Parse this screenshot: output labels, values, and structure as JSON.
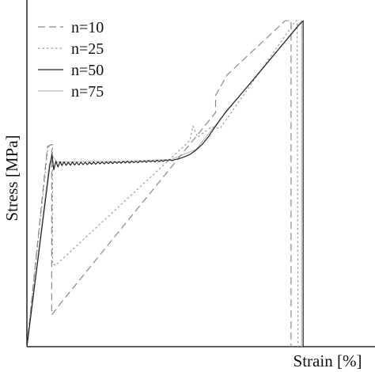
{
  "chart_data": {
    "type": "line",
    "title": "",
    "xlabel": "Strain [%]",
    "ylabel": "Stress [MPa]",
    "xlim": [
      0,
      100
    ],
    "ylim": [
      0,
      100
    ],
    "ticks_shown": false,
    "grid": false,
    "legend": {
      "placement": "top-left"
    },
    "series": [
      {
        "name": "n=10",
        "color": "#8a8a8a",
        "style": "dashed",
        "points": [
          [
            0,
            0
          ],
          [
            6.8,
            60.8
          ],
          [
            8.2,
            61.4
          ],
          [
            8.2,
            9.6
          ],
          [
            11.2,
            13.2
          ],
          [
            62.5,
            71.1
          ],
          [
            62.5,
            76.3
          ],
          [
            66.3,
            82.5
          ],
          [
            85.5,
            99.0
          ],
          [
            87.5,
            99.0
          ],
          [
            87.5,
            0
          ]
        ]
      },
      {
        "name": "n=25",
        "color": "#9a9a9a",
        "style": "dotted",
        "points": [
          [
            0,
            0
          ],
          [
            7.0,
            60.6
          ],
          [
            8.5,
            61.4
          ],
          [
            8.5,
            25.1
          ],
          [
            9.5,
            24.7
          ],
          [
            54.0,
            62.6
          ],
          [
            55.0,
            67.0
          ],
          [
            56.5,
            63.6
          ],
          [
            61.2,
            66.8
          ],
          [
            64.0,
            66.3
          ],
          [
            89.0,
            99.0
          ],
          [
            89.5,
            99.0
          ],
          [
            89.8,
            0
          ]
        ]
      },
      {
        "name": "n=50",
        "color": "#222222",
        "style": "solid",
        "points": [
          [
            0,
            0
          ],
          [
            7.6,
            55.1
          ],
          [
            8.3,
            58.4
          ],
          [
            8.9,
            53.7
          ],
          [
            9.6,
            56.3
          ],
          [
            10.3,
            54.6
          ],
          [
            11.0,
            56.2
          ],
          [
            11.6,
            55.0
          ],
          [
            12.3,
            56.1
          ],
          [
            13.0,
            55.1
          ],
          [
            13.7,
            56.0
          ],
          [
            14.4,
            55.1
          ],
          [
            15.1,
            56.1
          ],
          [
            15.8,
            55.2
          ],
          [
            16.5,
            56.0
          ],
          [
            17.2,
            55.2
          ],
          [
            17.9,
            56.0
          ],
          [
            18.6,
            55.3
          ],
          [
            19.3,
            56.0
          ],
          [
            20.0,
            55.3
          ],
          [
            20.7,
            56.0
          ],
          [
            21.4,
            55.4
          ],
          [
            22.1,
            56.1
          ],
          [
            22.8,
            55.4
          ],
          [
            23.5,
            56.1
          ],
          [
            24.2,
            55.5
          ],
          [
            24.9,
            56.1
          ],
          [
            25.6,
            55.5
          ],
          [
            26.3,
            56.1
          ],
          [
            27.0,
            55.6
          ],
          [
            27.7,
            56.2
          ],
          [
            28.4,
            55.6
          ],
          [
            29.1,
            56.2
          ],
          [
            29.8,
            55.7
          ],
          [
            30.5,
            56.2
          ],
          [
            31.2,
            55.7
          ],
          [
            31.9,
            56.3
          ],
          [
            32.6,
            55.8
          ],
          [
            33.3,
            56.3
          ],
          [
            34.0,
            55.8
          ],
          [
            34.7,
            56.3
          ],
          [
            35.4,
            55.9
          ],
          [
            36.1,
            56.3
          ],
          [
            36.8,
            55.9
          ],
          [
            37.5,
            56.4
          ],
          [
            38.2,
            56.0
          ],
          [
            38.9,
            56.4
          ],
          [
            39.6,
            56.0
          ],
          [
            40.3,
            56.5
          ],
          [
            41.0,
            56.1
          ],
          [
            41.7,
            56.5
          ],
          [
            42.4,
            56.1
          ],
          [
            43.1,
            56.6
          ],
          [
            43.8,
            56.2
          ],
          [
            44.5,
            56.6
          ],
          [
            45.2,
            56.3
          ],
          [
            45.9,
            56.7
          ],
          [
            46.6,
            56.4
          ],
          [
            47.3,
            56.8
          ],
          [
            48.0,
            56.5
          ],
          [
            49.0,
            56.8
          ],
          [
            50.0,
            57.0
          ],
          [
            52.0,
            57.6
          ],
          [
            54.0,
            58.4
          ],
          [
            56.0,
            59.7
          ],
          [
            58.0,
            61.4
          ],
          [
            60.0,
            63.6
          ],
          [
            62.0,
            66.3
          ],
          [
            64.0,
            68.9
          ],
          [
            66.0,
            71.5
          ],
          [
            70.0,
            75.7
          ],
          [
            75.0,
            81.1
          ],
          [
            80.0,
            86.6
          ],
          [
            85.0,
            92.1
          ],
          [
            90.0,
            97.6
          ],
          [
            91.5,
            99.0
          ],
          [
            91.5,
            0
          ]
        ]
      },
      {
        "name": "n=75",
        "color": "#bbbbbb",
        "style": "solid",
        "points": [
          [
            0,
            0
          ],
          [
            7.4,
            55.3
          ],
          [
            8.6,
            57.8
          ],
          [
            10.0,
            56.0
          ],
          [
            20.0,
            56.3
          ],
          [
            30.0,
            56.2
          ],
          [
            40.0,
            56.6
          ],
          [
            48.0,
            56.9
          ],
          [
            56.0,
            59.9
          ],
          [
            64.0,
            69.0
          ],
          [
            75.0,
            81.2
          ],
          [
            85.0,
            92.2
          ],
          [
            91.0,
            99.0
          ],
          [
            91.0,
            0
          ]
        ]
      }
    ]
  }
}
